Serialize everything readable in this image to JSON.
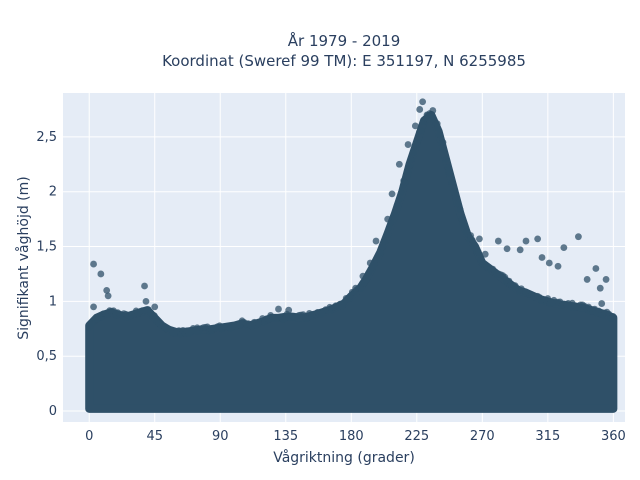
{
  "chart_data": {
    "type": "scatter",
    "title_line1": "År 1979 - 2019",
    "title_line2": "Koordinat (Sweref 99 TM): E 351197, N 6255985",
    "xlabel": "Vågriktning (grader)",
    "ylabel": "Signifikant våghöjd (m)",
    "xlim": [
      -18,
      368
    ],
    "ylim": [
      -0.1,
      2.9
    ],
    "x_ticks": [
      0,
      45,
      90,
      135,
      180,
      225,
      270,
      315,
      360
    ],
    "x_tick_labels": [
      "0",
      "45",
      "90",
      "135",
      "180",
      "225",
      "270",
      "315",
      "360"
    ],
    "y_ticks": [
      0,
      0.5,
      1,
      1.5,
      2,
      2.5
    ],
    "y_tick_labels": [
      "0",
      "0,5",
      "1",
      "1,5",
      "2",
      "2,5"
    ],
    "grid": true,
    "colors": {
      "plot_bg": "#e5ecf6",
      "grid": "#ffffff",
      "marker": "#2f5068",
      "text": "#2a3f5f"
    },
    "envelope": {
      "x": [
        0,
        5,
        10,
        15,
        20,
        25,
        30,
        35,
        40,
        45,
        50,
        55,
        60,
        65,
        70,
        75,
        80,
        85,
        90,
        95,
        100,
        105,
        110,
        115,
        120,
        125,
        130,
        135,
        140,
        145,
        150,
        155,
        160,
        165,
        170,
        175,
        180,
        185,
        190,
        195,
        200,
        205,
        210,
        215,
        220,
        225,
        230,
        235,
        240,
        245,
        250,
        255,
        260,
        265,
        270,
        275,
        280,
        285,
        290,
        295,
        300,
        305,
        310,
        315,
        320,
        325,
        330,
        335,
        340,
        345,
        350,
        355,
        360
      ],
      "max_height": [
        0.78,
        0.85,
        0.88,
        0.9,
        0.88,
        0.86,
        0.88,
        0.9,
        0.92,
        0.85,
        0.78,
        0.74,
        0.72,
        0.72,
        0.73,
        0.74,
        0.74,
        0.75,
        0.76,
        0.77,
        0.78,
        0.8,
        0.78,
        0.8,
        0.82,
        0.85,
        0.85,
        0.86,
        0.86,
        0.85,
        0.86,
        0.88,
        0.9,
        0.92,
        0.95,
        0.98,
        1.05,
        1.1,
        1.2,
        1.32,
        1.45,
        1.62,
        1.8,
        2.0,
        2.25,
        2.45,
        2.65,
        2.7,
        2.55,
        2.3,
        2.05,
        1.8,
        1.6,
        1.5,
        1.35,
        1.3,
        1.25,
        1.2,
        1.15,
        1.1,
        1.08,
        1.05,
        1.02,
        1.0,
        0.98,
        0.97,
        0.96,
        0.95,
        0.94,
        0.92,
        0.9,
        0.88,
        0.85
      ],
      "min_height": 0.02
    },
    "outliers": [
      {
        "x": 3,
        "y": 1.34
      },
      {
        "x": 8,
        "y": 1.25
      },
      {
        "x": 12,
        "y": 1.1
      },
      {
        "x": 13,
        "y": 1.05
      },
      {
        "x": 3,
        "y": 0.95
      },
      {
        "x": 38,
        "y": 1.14
      },
      {
        "x": 39,
        "y": 1.0
      },
      {
        "x": 45,
        "y": 0.95
      },
      {
        "x": 130,
        "y": 0.93
      },
      {
        "x": 137,
        "y": 0.92
      },
      {
        "x": 153,
        "y": 0.88
      },
      {
        "x": 183,
        "y": 1.12
      },
      {
        "x": 188,
        "y": 1.23
      },
      {
        "x": 193,
        "y": 1.35
      },
      {
        "x": 197,
        "y": 1.55
      },
      {
        "x": 205,
        "y": 1.75
      },
      {
        "x": 208,
        "y": 1.98
      },
      {
        "x": 213,
        "y": 2.25
      },
      {
        "x": 216,
        "y": 2.1
      },
      {
        "x": 219,
        "y": 2.43
      },
      {
        "x": 224,
        "y": 2.6
      },
      {
        "x": 227,
        "y": 2.75
      },
      {
        "x": 229,
        "y": 2.82
      },
      {
        "x": 232,
        "y": 2.7
      },
      {
        "x": 236,
        "y": 2.74
      },
      {
        "x": 239,
        "y": 2.62
      },
      {
        "x": 243,
        "y": 2.45
      },
      {
        "x": 247,
        "y": 2.2
      },
      {
        "x": 252,
        "y": 1.95
      },
      {
        "x": 256,
        "y": 1.75
      },
      {
        "x": 262,
        "y": 1.6
      },
      {
        "x": 268,
        "y": 1.57
      },
      {
        "x": 272,
        "y": 1.43
      },
      {
        "x": 281,
        "y": 1.55
      },
      {
        "x": 287,
        "y": 1.48
      },
      {
        "x": 296,
        "y": 1.47
      },
      {
        "x": 300,
        "y": 1.55
      },
      {
        "x": 308,
        "y": 1.57
      },
      {
        "x": 311,
        "y": 1.4
      },
      {
        "x": 316,
        "y": 1.35
      },
      {
        "x": 322,
        "y": 1.32
      },
      {
        "x": 326,
        "y": 1.49
      },
      {
        "x": 336,
        "y": 1.59
      },
      {
        "x": 342,
        "y": 1.2
      },
      {
        "x": 348,
        "y": 1.3
      },
      {
        "x": 355,
        "y": 1.2
      },
      {
        "x": 351,
        "y": 1.12
      },
      {
        "x": 352,
        "y": 0.98
      }
    ]
  }
}
